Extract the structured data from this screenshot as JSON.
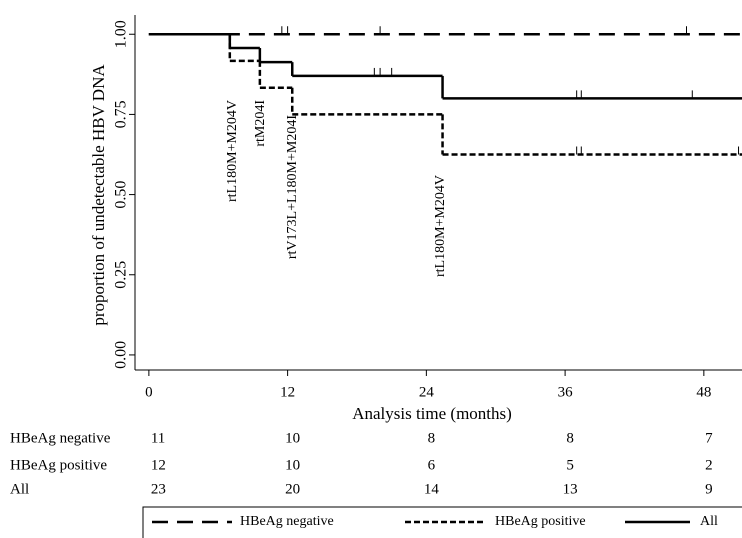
{
  "chart_data": {
    "type": "step",
    "x_label": "Analysis time (months)",
    "y_label": "proportion of undetectable HBV DNA",
    "xlim": [
      -1.2,
      51.3
    ],
    "xticks": [
      0,
      12,
      24,
      36,
      48
    ],
    "ylim": [
      -0.047,
      1.06
    ],
    "yticks": [
      {
        "value": 0,
        "label": "0.00"
      },
      {
        "value": 0.25,
        "label": "0.25"
      },
      {
        "value": 0.5,
        "label": "0.50"
      },
      {
        "value": 0.75,
        "label": "0.75"
      },
      {
        "value": 1,
        "label": "1.00"
      }
    ],
    "series": [
      {
        "name": "HBeAg negative",
        "color": "#000000",
        "dash": "long",
        "times": [
          0
        ],
        "values": [
          1
        ],
        "censored": [
          11.5,
          12,
          20,
          46.5
        ]
      },
      {
        "name": "HBeAg positive",
        "color": "#000000",
        "dash": "short",
        "times": [
          0,
          7,
          9.6,
          12.4,
          25.4
        ],
        "values": [
          1,
          0.917,
          0.833,
          0.75,
          0.625
        ],
        "censored": [
          37,
          37.4,
          51
        ]
      },
      {
        "name": "All",
        "color": "#000000",
        "dash": "solid",
        "times": [
          0,
          7,
          9.6,
          12.4,
          25.4
        ],
        "values": [
          1,
          0.957,
          0.913,
          0.87,
          0.8
        ],
        "censored": [
          19.5,
          20,
          21,
          37,
          37.4,
          47
        ]
      }
    ],
    "annotations": [
      "rtL180M+M204V",
      "rtM204I",
      "rtV173L+L180M+M204I",
      "rtL180M+M204V"
    ],
    "risk_table": {
      "rows": [
        {
          "name": "HBeAg negative",
          "values": [
            11,
            10,
            8,
            8,
            7
          ]
        },
        {
          "name": "HBeAg positive",
          "values": [
            12,
            10,
            6,
            5,
            2
          ]
        },
        {
          "name": "All",
          "values": [
            23,
            20,
            14,
            13,
            9
          ]
        }
      ]
    }
  }
}
